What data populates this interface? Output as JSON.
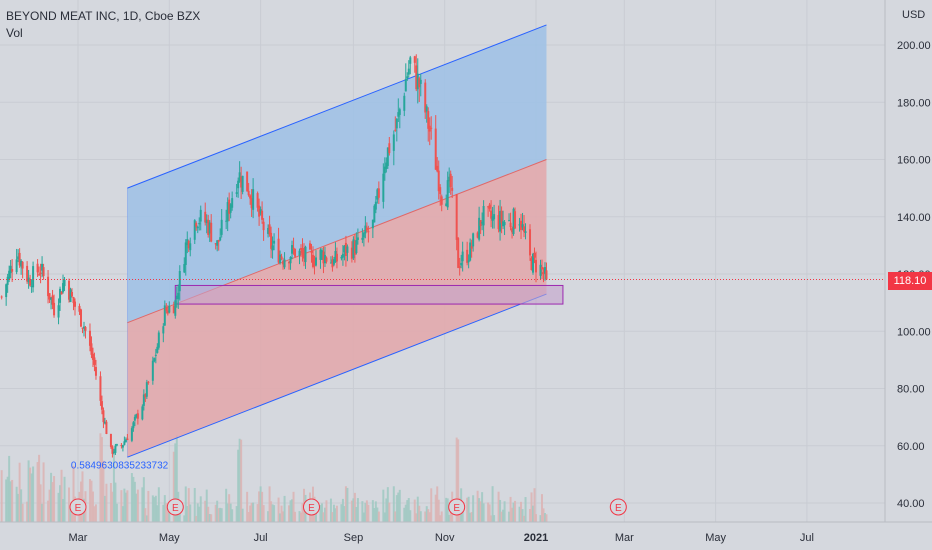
{
  "header": {
    "symbol_line": "BEYOND MEAT INC, 1D, Cboe BZX",
    "indicator": "Vol"
  },
  "colors": {
    "background": "#d5d8de",
    "up": "#26a69a",
    "down": "#ef5350",
    "channel_upper_fill": "#9ec1e6",
    "channel_lower_fill": "#e3a7aa",
    "channel_line": "#2962ff",
    "zone_fill": "#c4a4cc",
    "zone_line": "#9c27b0",
    "current_price_line": "#f23645",
    "fib_label": "#2962ff",
    "earnings": "#f23645"
  },
  "chart_data": {
    "type": "candlestick",
    "title": "BEYOND MEAT INC, 1D, Cboe BZX",
    "currency": "USD",
    "current_price": 118.1,
    "current_price_label": "118.10",
    "y_ticks": [
      "200.00",
      "180.00",
      "160.00",
      "140.00",
      "120.00",
      "100.00",
      "80.00",
      "60.00",
      "40.00"
    ],
    "y_tick_values": [
      200,
      180,
      160,
      140,
      120,
      100,
      80,
      60,
      40
    ],
    "ylim": [
      35,
      212
    ],
    "x_ticks": [
      "Mar",
      "May",
      "Jul",
      "Sep",
      "Nov",
      "2021",
      "Mar",
      "May",
      "Jul"
    ],
    "x_tick_dates": [
      "2020-03-01",
      "2020-05-01",
      "2020-07-01",
      "2020-09-01",
      "2020-11-01",
      "2021-01-01",
      "2021-03-01",
      "2021-05-01",
      "2021-07-01"
    ],
    "earnings_markers": {
      "label": "E",
      "dates": [
        "2020-03-01",
        "2020-05-05",
        "2020-08-04",
        "2020-11-09",
        "2021-02-25"
      ]
    },
    "price_path": [
      [
        "2020-01-10",
        112
      ],
      [
        "2020-01-20",
        128
      ],
      [
        "2020-01-28",
        118
      ],
      [
        "2020-02-05",
        122
      ],
      [
        "2020-02-14",
        108
      ],
      [
        "2020-02-21",
        118
      ],
      [
        "2020-02-27",
        110
      ],
      [
        "2020-03-05",
        102
      ],
      [
        "2020-03-12",
        88
      ],
      [
        "2020-03-16",
        75
      ],
      [
        "2020-03-23",
        58
      ],
      [
        "2020-03-30",
        60
      ],
      [
        "2020-04-06",
        66
      ],
      [
        "2020-04-14",
        76
      ],
      [
        "2020-04-21",
        90
      ],
      [
        "2020-04-28",
        107
      ],
      [
        "2020-05-05",
        110
      ],
      [
        "2020-05-12",
        130
      ],
      [
        "2020-05-19",
        140
      ],
      [
        "2020-05-26",
        138
      ],
      [
        "2020-06-02",
        130
      ],
      [
        "2020-06-09",
        142
      ],
      [
        "2020-06-16",
        155
      ],
      [
        "2020-06-23",
        150
      ],
      [
        "2020-06-30",
        140
      ],
      [
        "2020-07-08",
        130
      ],
      [
        "2020-07-16",
        126
      ],
      [
        "2020-07-24",
        128
      ],
      [
        "2020-08-03",
        125
      ],
      [
        "2020-08-11",
        127
      ],
      [
        "2020-08-19",
        124
      ],
      [
        "2020-08-27",
        128
      ],
      [
        "2020-09-04",
        130
      ],
      [
        "2020-09-14",
        137
      ],
      [
        "2020-09-22",
        160
      ],
      [
        "2020-09-30",
        172
      ],
      [
        "2020-10-06",
        188
      ],
      [
        "2020-10-09",
        194
      ],
      [
        "2020-10-15",
        186
      ],
      [
        "2020-10-22",
        170
      ],
      [
        "2020-10-30",
        148
      ],
      [
        "2020-11-05",
        150
      ],
      [
        "2020-11-10",
        124
      ],
      [
        "2020-11-18",
        128
      ],
      [
        "2020-11-26",
        140
      ],
      [
        "2020-12-04",
        139
      ],
      [
        "2020-12-14",
        138
      ],
      [
        "2020-12-21",
        140
      ],
      [
        "2020-12-28",
        125
      ],
      [
        "2021-01-04",
        122
      ],
      [
        "2021-01-08",
        118.1
      ]
    ],
    "volume_spikes": [
      "2020-03-16",
      "2020-05-05",
      "2020-06-17",
      "2020-11-09"
    ],
    "channel": {
      "start_date": "2020-04-03",
      "end_date": "2021-01-08",
      "top_start": 150,
      "top_end": 207,
      "mid_start": 103,
      "mid_end": 160,
      "bottom_start": 56,
      "bottom_end": 113
    },
    "support_zone": {
      "start_date": "2020-05-05",
      "end_date": "2021-01-19",
      "top": 116,
      "bottom": 109.5
    },
    "fib_label": "0.5849630835233732",
    "fib_anchor": {
      "date": "2020-03-23",
      "value": 58
    }
  }
}
